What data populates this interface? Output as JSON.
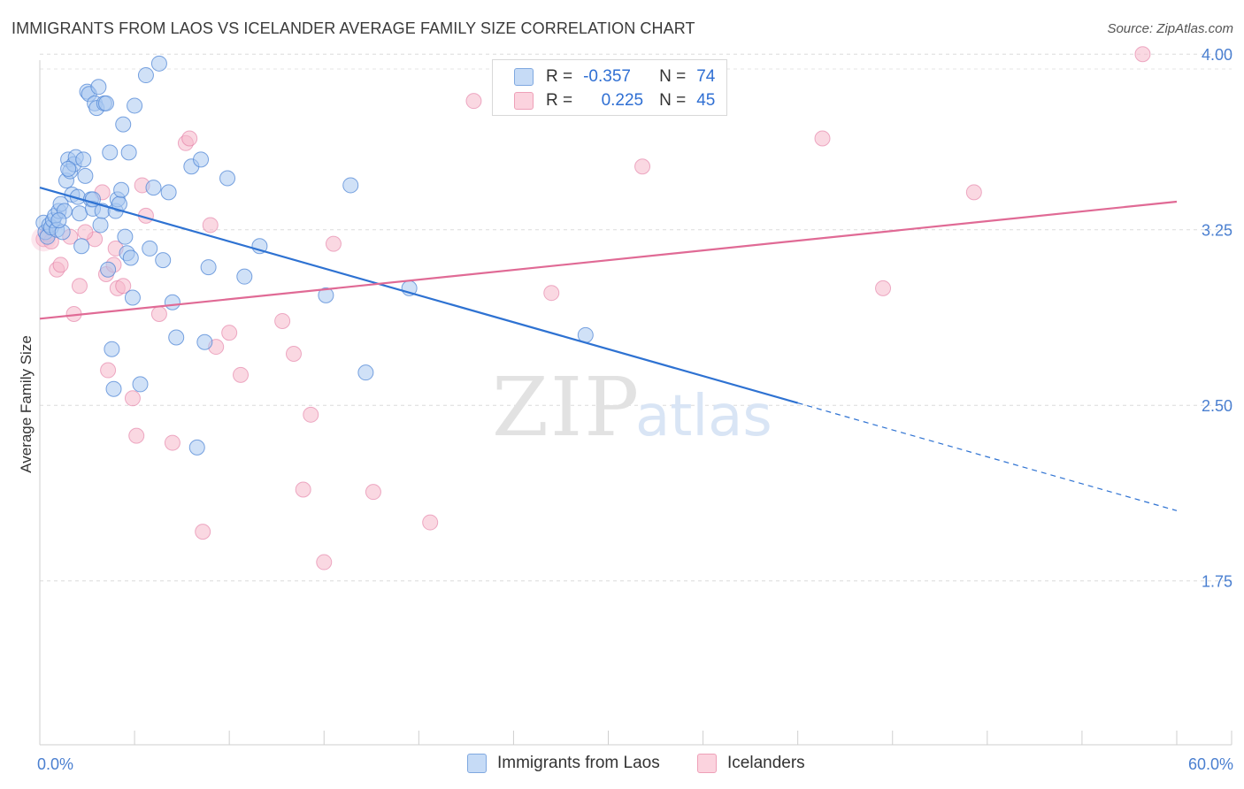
{
  "header": {
    "title": "IMMIGRANTS FROM LAOS VS ICELANDER AVERAGE FAMILY SIZE CORRELATION CHART",
    "source": "Source: ZipAtlas.com"
  },
  "watermark": {
    "zip": "ZIP",
    "atlas": "atlas"
  },
  "legend": {
    "rows": [
      {
        "r_label": "R =",
        "r_value": "-0.357",
        "n_label": "N =",
        "n_value": "74",
        "color": "#a9c8f0"
      },
      {
        "r_label": "R =",
        "r_value": "0.225",
        "n_label": "N =",
        "n_value": "45",
        "color": "#f5b8cb"
      }
    ]
  },
  "bottom_legend": {
    "items": [
      {
        "label": "Immigrants from Laos",
        "color": "#a9c8f0"
      },
      {
        "label": "Icelanders",
        "color": "#f5b8cb"
      }
    ]
  },
  "chart_data": {
    "type": "scatter",
    "title": "IMMIGRANTS FROM LAOS VS ICELANDER AVERAGE FAMILY SIZE CORRELATION CHART",
    "xlabel": "",
    "ylabel": "Average Family Size",
    "xlim": [
      0,
      60
    ],
    "ylim": [
      1.05,
      4.05
    ],
    "x_tick_labels": [
      "0.0%",
      "60.0%"
    ],
    "y_ticks": [
      1.75,
      2.5,
      3.25,
      4.0
    ],
    "y_tick_labels": [
      "1.75",
      "2.50",
      "3.25",
      "4.00"
    ],
    "grid": "horizontal dashed",
    "legend_position": "top-center",
    "colors": {
      "laos": "#4f86d6",
      "laos_fill": "#a9c8f0",
      "ice": "#e0709a",
      "ice_fill": "#f5b8cb",
      "laos_line": "#2e72d2",
      "ice_line": "#e06a95"
    },
    "series": [
      {
        "name": "Immigrants from Laos",
        "trend": {
          "x0": 0,
          "y0": 3.43,
          "x1": 40,
          "y1": 2.51,
          "dash_x1": 60,
          "dash_y1": 2.05
        },
        "points": [
          [
            0.2,
            3.28
          ],
          [
            0.3,
            3.24
          ],
          [
            0.4,
            3.22
          ],
          [
            0.5,
            3.27
          ],
          [
            0.6,
            3.26
          ],
          [
            0.7,
            3.29
          ],
          [
            0.8,
            3.31
          ],
          [
            0.9,
            3.25
          ],
          [
            1.0,
            3.33
          ],
          [
            1.1,
            3.36
          ],
          [
            1.2,
            3.24
          ],
          [
            1.3,
            3.33
          ],
          [
            1.4,
            3.46
          ],
          [
            1.5,
            3.55
          ],
          [
            1.6,
            3.5
          ],
          [
            1.7,
            3.4
          ],
          [
            1.8,
            3.53
          ],
          [
            1.9,
            3.56
          ],
          [
            2.0,
            3.39
          ],
          [
            2.1,
            3.32
          ],
          [
            2.2,
            3.18
          ],
          [
            2.3,
            3.55
          ],
          [
            2.4,
            3.48
          ],
          [
            2.5,
            3.84
          ],
          [
            2.6,
            3.83
          ],
          [
            2.7,
            3.38
          ],
          [
            2.8,
            3.34
          ],
          [
            2.9,
            3.79
          ],
          [
            3.0,
            3.77
          ],
          [
            3.1,
            3.86
          ],
          [
            3.2,
            3.27
          ],
          [
            3.3,
            3.33
          ],
          [
            3.4,
            3.79
          ],
          [
            3.5,
            3.79
          ],
          [
            3.6,
            3.08
          ],
          [
            3.7,
            3.58
          ],
          [
            3.8,
            2.74
          ],
          [
            3.9,
            2.57
          ],
          [
            4.0,
            3.33
          ],
          [
            4.1,
            3.38
          ],
          [
            4.2,
            3.36
          ],
          [
            4.3,
            3.42
          ],
          [
            4.4,
            3.7
          ],
          [
            4.5,
            3.22
          ],
          [
            4.6,
            3.15
          ],
          [
            4.7,
            3.58
          ],
          [
            4.8,
            3.13
          ],
          [
            4.9,
            2.96
          ],
          [
            5.0,
            3.78
          ],
          [
            5.3,
            2.59
          ],
          [
            5.6,
            3.91
          ],
          [
            5.8,
            3.17
          ],
          [
            6.0,
            3.43
          ],
          [
            6.3,
            3.96
          ],
          [
            6.5,
            3.12
          ],
          [
            6.8,
            3.41
          ],
          [
            7.0,
            2.94
          ],
          [
            7.2,
            2.79
          ],
          [
            8.0,
            3.52
          ],
          [
            8.5,
            3.55
          ],
          [
            8.7,
            2.77
          ],
          [
            8.9,
            3.09
          ],
          [
            8.3,
            2.32
          ],
          [
            9.9,
            3.47
          ],
          [
            10.8,
            3.05
          ],
          [
            11.6,
            3.18
          ],
          [
            15.1,
            2.97
          ],
          [
            16.4,
            3.44
          ],
          [
            17.2,
            2.64
          ],
          [
            19.5,
            3.0
          ],
          [
            28.8,
            2.8
          ],
          [
            1.5,
            3.51
          ],
          [
            1.0,
            3.29
          ],
          [
            2.8,
            3.38
          ]
        ]
      },
      {
        "name": "Icelanders",
        "trend": {
          "x0": 0,
          "y0": 2.87,
          "x1": 60,
          "y1": 3.37
        },
        "points": [
          [
            0.2,
            3.21
          ],
          [
            0.4,
            3.23
          ],
          [
            0.9,
            3.08
          ],
          [
            1.1,
            3.1
          ],
          [
            1.6,
            3.22
          ],
          [
            1.8,
            2.89
          ],
          [
            2.1,
            3.01
          ],
          [
            2.9,
            3.21
          ],
          [
            3.3,
            3.41
          ],
          [
            3.5,
            3.06
          ],
          [
            3.6,
            2.65
          ],
          [
            3.9,
            3.1
          ],
          [
            4.0,
            3.17
          ],
          [
            4.1,
            3.0
          ],
          [
            4.4,
            3.01
          ],
          [
            4.9,
            2.53
          ],
          [
            5.1,
            2.37
          ],
          [
            5.4,
            3.44
          ],
          [
            5.6,
            3.31
          ],
          [
            6.3,
            2.89
          ],
          [
            7.0,
            2.34
          ],
          [
            7.7,
            3.62
          ],
          [
            7.9,
            3.64
          ],
          [
            8.6,
            1.96
          ],
          [
            9.0,
            3.27
          ],
          [
            9.3,
            2.75
          ],
          [
            10.0,
            2.81
          ],
          [
            10.6,
            2.63
          ],
          [
            12.8,
            2.86
          ],
          [
            13.4,
            2.72
          ],
          [
            13.9,
            2.14
          ],
          [
            14.3,
            2.46
          ],
          [
            15.0,
            1.83
          ],
          [
            15.5,
            3.19
          ],
          [
            17.6,
            2.13
          ],
          [
            20.6,
            2.0
          ],
          [
            22.9,
            3.8
          ],
          [
            27.0,
            2.98
          ],
          [
            31.8,
            3.52
          ],
          [
            41.3,
            3.64
          ],
          [
            44.5,
            3.0
          ],
          [
            49.3,
            3.41
          ],
          [
            58.2,
            4.0
          ],
          [
            0.6,
            3.2
          ],
          [
            2.4,
            3.24
          ]
        ]
      }
    ]
  }
}
